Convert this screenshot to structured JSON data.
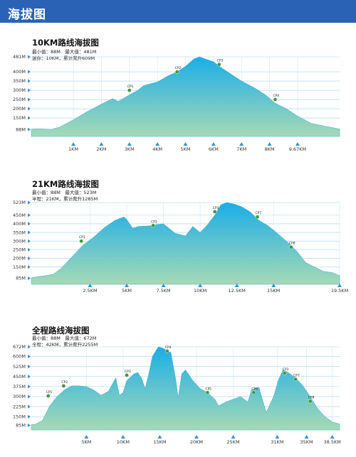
{
  "header": {
    "title": "海拔图"
  },
  "colors": {
    "header": "#2a63b6",
    "fill_top": "#1aaee6",
    "fill_bottom": "#a6d9b6",
    "marker": "#3a9a3c",
    "tick": "#3a8fd0"
  },
  "charts": [
    {
      "title": "10KM路线海拔图",
      "stat_line1": "最小值：88M　最大值：481M",
      "stat_line2": "迷你：10KM，累计爬升609M"
    },
    {
      "title": "21KM路线海拔图",
      "stat_line1": "最小值：88M　最大值：523M",
      "stat_line2": "半程：21KM，累计爬升1285M"
    },
    {
      "title": "全程路线海拔图",
      "stat_line1": "最小值：88M　最大值：672M",
      "stat_line2": "全程：42KM，累计爬升2255M"
    }
  ],
  "chart_data": [
    {
      "type": "area",
      "title": "10KM路线海拔图",
      "xlim": [
        -0.5,
        10.5
      ],
      "ylim": [
        50,
        481
      ],
      "yticks": [
        88,
        150,
        200,
        250,
        300,
        350,
        400,
        481
      ],
      "ytick_labels": [
        "88M",
        "150M",
        "200M",
        "250M",
        "300M",
        "350M",
        "400M",
        "481M"
      ],
      "xticks": [
        1,
        2,
        3,
        4,
        5,
        6,
        7,
        8,
        9
      ],
      "xtick_labels": [
        "1KM",
        "2KM",
        "3KM",
        "4KM",
        "5KM",
        "6KM",
        "7KM",
        "8KM",
        "9.67KM"
      ],
      "x": [
        -0.5,
        -0.2,
        0.2,
        0.5,
        1.0,
        1.5,
        2.0,
        2.4,
        2.6,
        3.0,
        3.3,
        3.5,
        4.0,
        4.4,
        4.7,
        5.0,
        5.3,
        5.5,
        5.8,
        6.0,
        6.3,
        6.6,
        7.0,
        7.5,
        7.9,
        8.2,
        8.6,
        9.0,
        9.5,
        10.5
      ],
      "y": [
        90,
        92,
        88,
        100,
        140,
        185,
        225,
        255,
        240,
        275,
        300,
        325,
        345,
        380,
        400,
        430,
        470,
        481,
        465,
        455,
        420,
        390,
        350,
        310,
        270,
        230,
        200,
        160,
        120,
        90
      ],
      "checkpoints": [
        {
          "label": "CP1",
          "x": 3.0,
          "y": 300
        },
        {
          "label": "CP2",
          "x": 4.7,
          "y": 400
        },
        {
          "label": "CP3",
          "x": 6.2,
          "y": 440
        },
        {
          "label": "CP4",
          "x": 8.2,
          "y": 250
        }
      ]
    },
    {
      "type": "area",
      "title": "21KM路线海拔图",
      "xlim": [
        -1.5,
        19.5
      ],
      "ylim": [
        50,
        523
      ],
      "yticks": [
        85,
        150,
        200,
        250,
        300,
        350,
        400,
        450,
        523
      ],
      "ytick_labels": [
        "85M",
        "150M",
        "200M",
        "250M",
        "300M",
        "350M",
        "400M",
        "450M",
        "523M"
      ],
      "xticks": [
        2.5,
        5,
        7.5,
        10,
        12.5,
        15,
        19.5
      ],
      "xtick_labels": [
        "2.5KM",
        "5KM",
        "7.5KM",
        "10KM",
        "12.5KM",
        "15KM",
        "19.5KM"
      ],
      "x": [
        -1.5,
        -1.0,
        -0.5,
        0.0,
        0.5,
        1.0,
        1.5,
        2.0,
        2.7,
        3.5,
        4.2,
        4.8,
        5.0,
        5.4,
        5.8,
        6.5,
        7.0,
        7.5,
        8.3,
        9.0,
        9.5,
        10.0,
        10.5,
        11.0,
        11.4,
        11.8,
        12.3,
        12.8,
        13.4,
        14.0,
        14.6,
        15.2,
        16.0,
        16.6,
        17.2,
        17.8,
        18.4,
        19.0,
        19.5
      ],
      "y": [
        88,
        95,
        100,
        108,
        140,
        185,
        230,
        275,
        320,
        380,
        420,
        440,
        425,
        375,
        385,
        388,
        395,
        400,
        345,
        330,
        385,
        350,
        395,
        450,
        510,
        523,
        515,
        500,
        470,
        420,
        390,
        350,
        290,
        240,
        175,
        150,
        125,
        118,
        100
      ],
      "checkpoints": [
        {
          "label": "CP1",
          "x": 1.9,
          "y": 300
        },
        {
          "label": "CP2",
          "x": 6.8,
          "y": 390
        },
        {
          "label": "CP3",
          "x": 11.0,
          "y": 470
        },
        {
          "label": "CP7",
          "x": 13.9,
          "y": 440
        },
        {
          "label": "CP8",
          "x": 16.2,
          "y": 265
        }
      ]
    },
    {
      "type": "area",
      "title": "全程路线海拔图",
      "xlim": [
        -2.5,
        39.5
      ],
      "ylim": [
        50,
        672
      ],
      "yticks": [
        85,
        150,
        225,
        300,
        375,
        450,
        525,
        600,
        672
      ],
      "ytick_labels": [
        "85M",
        "150M",
        "225M",
        "300M",
        "375M",
        "450M",
        "525M",
        "600M",
        "672M"
      ],
      "xticks": [
        5,
        10,
        15,
        20,
        25,
        31,
        35,
        38.5
      ],
      "xtick_labels": [
        "5KM",
        "10KM",
        "15KM",
        "20KM",
        "25KM",
        "31KM",
        "35KM",
        "38.5KM"
      ],
      "x": [
        -2.5,
        -2.0,
        -1.0,
        0.0,
        1.0,
        2.0,
        3.0,
        4.0,
        5.0,
        6.0,
        7.0,
        8.0,
        9.0,
        9.5,
        10.0,
        10.5,
        11.5,
        12.0,
        12.5,
        13.0,
        13.5,
        14.0,
        14.8,
        15.5,
        16.5,
        17.2,
        17.5,
        18.0,
        18.5,
        19.5,
        20.5,
        21.5,
        22.5,
        23.0,
        24.0,
        25.0,
        26.0,
        27.0,
        27.5,
        28.5,
        29.5,
        30.5,
        31.2,
        31.8,
        32.5,
        33.5,
        34.5,
        35.5,
        36.5,
        37.5,
        38.5,
        39.5
      ],
      "y": [
        90,
        92,
        120,
        230,
        300,
        350,
        380,
        380,
        375,
        350,
        310,
        340,
        440,
        310,
        330,
        420,
        470,
        480,
        440,
        360,
        470,
        600,
        672,
        660,
        630,
        420,
        290,
        470,
        500,
        420,
        360,
        330,
        280,
        230,
        260,
        280,
        300,
        260,
        350,
        370,
        180,
        300,
        430,
        500,
        480,
        440,
        380,
        300,
        210,
        150,
        110,
        95
      ],
      "checkpoints": [
        {
          "label": "CP1",
          "x": -0.2,
          "y": 305
        },
        {
          "label": "CP2",
          "x": 1.9,
          "y": 380
        },
        {
          "label": "CP3",
          "x": 10.5,
          "y": 460
        },
        {
          "label": "CP4",
          "x": 16.0,
          "y": 640
        },
        {
          "label": "CP5",
          "x": 21.5,
          "y": 330
        },
        {
          "label": "CP6",
          "x": 27.8,
          "y": 330
        },
        {
          "label": "CP3",
          "x": 32.0,
          "y": 475
        },
        {
          "label": "CP7",
          "x": 33.5,
          "y": 430
        },
        {
          "label": "CP8",
          "x": 35.5,
          "y": 265
        }
      ]
    }
  ]
}
